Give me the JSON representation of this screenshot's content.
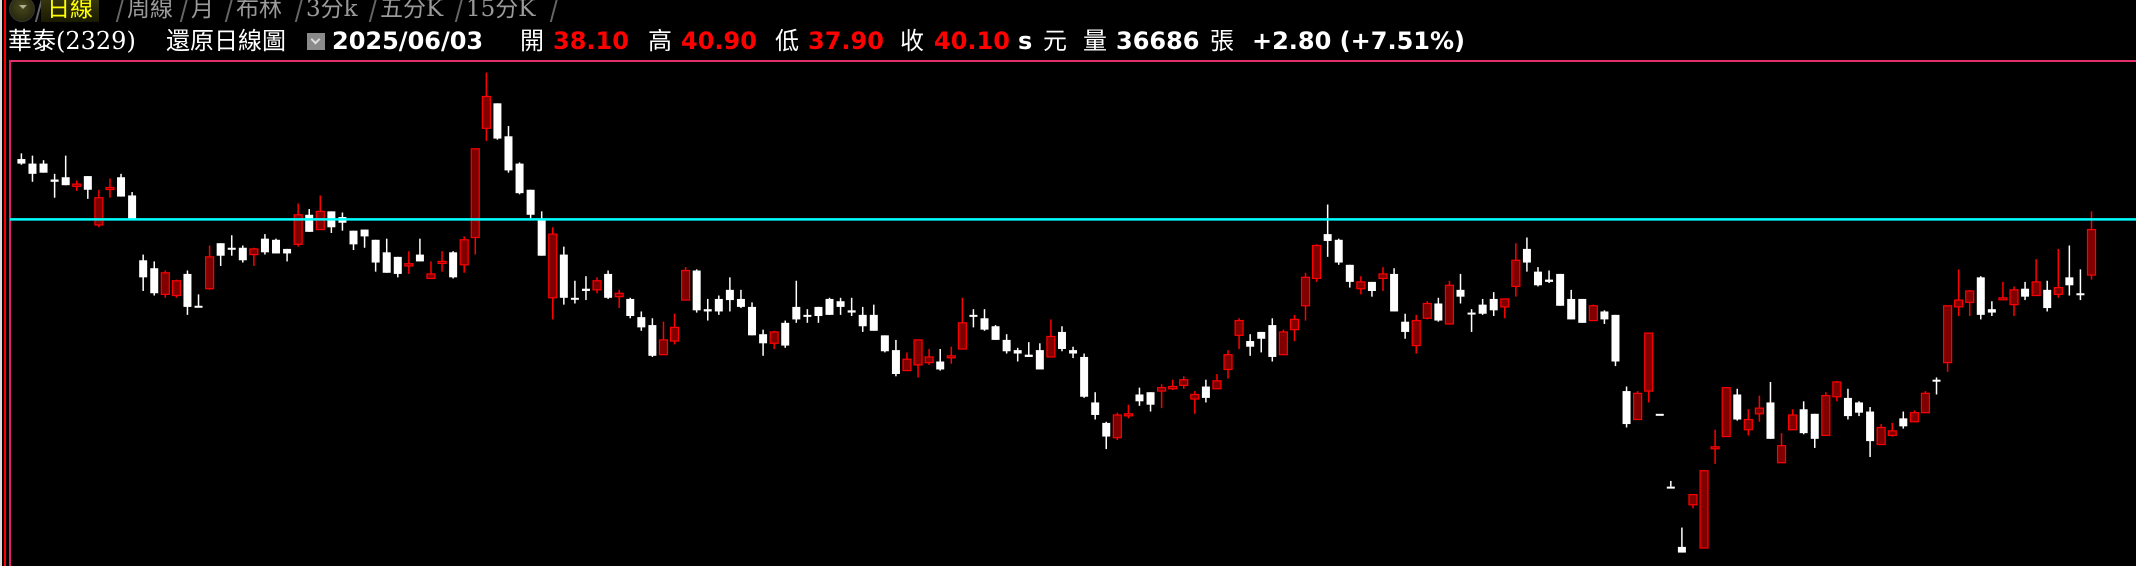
{
  "tabs": [
    {
      "label": "日線",
      "active": true
    },
    {
      "label": "周線",
      "active": false
    },
    {
      "label": "月",
      "active": false
    },
    {
      "label": "布林",
      "active": false
    },
    {
      "label": "3分k",
      "active": false
    },
    {
      "label": "五分K",
      "active": false
    },
    {
      "label": "15分K",
      "active": false
    }
  ],
  "info": {
    "stock": "華泰(2329)",
    "chart_type": "還原日線圖",
    "date": "2025/06/03",
    "open_label": "開",
    "open": "38.10",
    "high_label": "高",
    "high": "40.90",
    "low_label": "低",
    "low": "37.90",
    "close_label": "收",
    "close": "40.10",
    "close_suffix": "s",
    "unit": "元",
    "volume_label": "量",
    "volume": "36686",
    "volume_unit": "張",
    "change": "+2.80 (+7.51%)"
  },
  "colors": {
    "up": "#ff0000",
    "up_fill": "#800000",
    "down": "#ffffff",
    "reference_line": "#00ffff",
    "frame": "#e0206a",
    "active_tab": "#ffff00"
  },
  "chart_data": {
    "type": "candlestick",
    "ylim": [
      25.31,
      47.51
    ],
    "reference_line": 40.55,
    "grid": false,
    "ohlc_fields": [
      "open",
      "high",
      "low",
      "close"
    ],
    "candles": [
      [
        43.2,
        43.45,
        42.95,
        43.0
      ],
      [
        43.0,
        43.35,
        42.2,
        42.55
      ],
      [
        43.0,
        43.15,
        42.6,
        42.6
      ],
      [
        42.3,
        42.55,
        41.5,
        42.2
      ],
      [
        42.4,
        43.35,
        42.05,
        42.05
      ],
      [
        42.0,
        42.25,
        41.8,
        42.1
      ],
      [
        42.45,
        42.45,
        41.45,
        41.85
      ],
      [
        40.3,
        41.85,
        40.2,
        41.5
      ],
      [
        41.9,
        42.35,
        41.5,
        41.95
      ],
      [
        42.4,
        42.55,
        41.55,
        41.55
      ],
      [
        41.6,
        41.75,
        40.55,
        40.55
      ],
      [
        38.75,
        39.0,
        37.4,
        38.0
      ],
      [
        38.4,
        38.7,
        37.2,
        37.3
      ],
      [
        37.25,
        38.3,
        37.1,
        38.2
      ],
      [
        37.2,
        37.9,
        37.1,
        37.85
      ],
      [
        38.15,
        38.3,
        36.35,
        36.7
      ],
      [
        36.75,
        37.25,
        36.7,
        36.7
      ],
      [
        37.5,
        39.4,
        37.45,
        38.9
      ],
      [
        39.5,
        39.5,
        38.5,
        38.95
      ],
      [
        39.3,
        39.85,
        38.95,
        39.25
      ],
      [
        39.3,
        39.4,
        38.65,
        38.75
      ],
      [
        39.0,
        39.3,
        38.5,
        39.25
      ],
      [
        39.7,
        39.9,
        39.0,
        39.1
      ],
      [
        39.65,
        39.7,
        39.05,
        39.05
      ],
      [
        39.25,
        39.25,
        38.7,
        39.05
      ],
      [
        39.45,
        41.25,
        39.35,
        40.75
      ],
      [
        40.75,
        41.0,
        40.0,
        40.0
      ],
      [
        40.1,
        41.6,
        40.1,
        40.9
      ],
      [
        40.9,
        40.9,
        39.95,
        40.2
      ],
      [
        40.65,
        40.85,
        40.05,
        40.4
      ],
      [
        40.05,
        40.05,
        39.2,
        39.45
      ],
      [
        40.1,
        40.1,
        39.3,
        39.8
      ],
      [
        39.65,
        39.65,
        38.25,
        38.65
      ],
      [
        39.1,
        39.7,
        38.2,
        38.2
      ],
      [
        38.9,
        38.9,
        38.0,
        38.15
      ],
      [
        38.5,
        39.15,
        38.15,
        38.6
      ],
      [
        39.0,
        39.7,
        38.7,
        38.7
      ],
      [
        37.95,
        38.7,
        37.95,
        38.15
      ],
      [
        38.65,
        39.15,
        38.25,
        38.7
      ],
      [
        39.1,
        39.15,
        37.95,
        38.0
      ],
      [
        38.55,
        39.8,
        38.2,
        39.65
      ],
      [
        39.75,
        43.65,
        39.0,
        43.65
      ],
      [
        44.55,
        47.0,
        44.0,
        45.95
      ],
      [
        45.65,
        45.65,
        44.05,
        44.1
      ],
      [
        44.2,
        44.65,
        42.6,
        42.7
      ],
      [
        43.0,
        43.05,
        41.65,
        41.7
      ],
      [
        41.85,
        41.85,
        40.6,
        40.75
      ],
      [
        40.55,
        40.9,
        38.95,
        38.95
      ],
      [
        37.1,
        40.2,
        36.15,
        39.9
      ],
      [
        39.0,
        39.35,
        36.8,
        37.1
      ],
      [
        37.1,
        37.85,
        36.85,
        37.05
      ],
      [
        37.5,
        38.05,
        37.0,
        37.4
      ],
      [
        37.45,
        38.0,
        37.3,
        37.85
      ],
      [
        38.15,
        38.3,
        37.05,
        37.1
      ],
      [
        37.15,
        37.45,
        36.65,
        37.3
      ],
      [
        37.05,
        37.1,
        36.2,
        36.3
      ],
      [
        36.25,
        36.5,
        35.65,
        35.8
      ],
      [
        35.9,
        36.2,
        34.5,
        34.55
      ],
      [
        34.6,
        36.05,
        34.6,
        35.25
      ],
      [
        35.2,
        36.4,
        35.05,
        35.8
      ],
      [
        37.0,
        38.45,
        37.0,
        38.3
      ],
      [
        38.3,
        38.35,
        36.45,
        36.55
      ],
      [
        36.6,
        37.05,
        36.1,
        36.5
      ],
      [
        37.05,
        37.2,
        36.35,
        36.5
      ],
      [
        37.45,
        38.0,
        36.5,
        37.0
      ],
      [
        37.05,
        37.45,
        36.65,
        36.7
      ],
      [
        36.7,
        36.9,
        35.45,
        35.45
      ],
      [
        35.5,
        35.7,
        34.55,
        35.1
      ],
      [
        35.1,
        35.65,
        34.85,
        35.6
      ],
      [
        36.0,
        36.1,
        34.9,
        35.0
      ],
      [
        36.7,
        37.85,
        36.0,
        36.15
      ],
      [
        36.35,
        36.6,
        36.0,
        36.3
      ],
      [
        36.7,
        36.7,
        36.0,
        36.3
      ],
      [
        37.05,
        37.1,
        36.35,
        36.35
      ],
      [
        36.95,
        37.1,
        36.35,
        36.7
      ],
      [
        36.55,
        37.1,
        36.3,
        36.45
      ],
      [
        36.35,
        36.7,
        35.6,
        35.85
      ],
      [
        36.35,
        36.8,
        35.65,
        35.65
      ],
      [
        35.45,
        35.45,
        34.7,
        34.75
      ],
      [
        34.8,
        35.25,
        33.65,
        33.75
      ],
      [
        33.9,
        34.7,
        33.9,
        34.4
      ],
      [
        34.15,
        35.25,
        33.6,
        35.25
      ],
      [
        34.25,
        34.85,
        34.15,
        34.5
      ],
      [
        34.3,
        34.85,
        33.9,
        33.95
      ],
      [
        34.5,
        34.95,
        34.2,
        34.55
      ],
      [
        34.85,
        37.1,
        34.85,
        36.0
      ],
      [
        36.35,
        36.6,
        35.8,
        36.3
      ],
      [
        36.2,
        36.6,
        35.65,
        35.7
      ],
      [
        35.85,
        35.9,
        35.25,
        35.25
      ],
      [
        35.25,
        35.5,
        34.65,
        34.75
      ],
      [
        34.8,
        34.9,
        34.3,
        34.65
      ],
      [
        34.6,
        35.15,
        34.5,
        34.5
      ],
      [
        34.8,
        35.1,
        33.95,
        33.95
      ],
      [
        34.5,
        36.15,
        34.5,
        35.4
      ],
      [
        35.6,
        35.85,
        34.75,
        34.85
      ],
      [
        34.8,
        34.95,
        34.45,
        34.65
      ],
      [
        34.5,
        34.65,
        32.7,
        32.75
      ],
      [
        32.5,
        32.95,
        31.75,
        31.95
      ],
      [
        31.6,
        31.65,
        30.45,
        31.0
      ],
      [
        30.95,
        32.05,
        30.85,
        31.95
      ],
      [
        31.95,
        32.4,
        31.8,
        32.0
      ],
      [
        32.85,
        33.15,
        32.35,
        32.55
      ],
      [
        32.95,
        32.95,
        32.1,
        32.4
      ],
      [
        33.0,
        33.3,
        32.25,
        33.15
      ],
      [
        33.1,
        33.5,
        33.05,
        33.2
      ],
      [
        33.25,
        33.65,
        33.1,
        33.5
      ],
      [
        32.65,
        33.0,
        32.0,
        32.85
      ],
      [
        33.2,
        33.5,
        32.5,
        32.7
      ],
      [
        33.1,
        33.75,
        33.1,
        33.45
      ],
      [
        33.95,
        34.8,
        33.55,
        34.6
      ],
      [
        35.45,
        36.2,
        34.85,
        36.1
      ],
      [
        35.2,
        35.5,
        34.55,
        34.95
      ],
      [
        35.6,
        35.6,
        34.7,
        35.3
      ],
      [
        35.9,
        36.2,
        34.3,
        34.5
      ],
      [
        34.6,
        35.7,
        34.6,
        35.6
      ],
      [
        35.7,
        36.35,
        35.2,
        36.15
      ],
      [
        36.75,
        38.2,
        36.1,
        38.0
      ],
      [
        37.95,
        39.45,
        37.8,
        39.4
      ],
      [
        39.9,
        41.2,
        38.9,
        39.6
      ],
      [
        39.65,
        39.7,
        38.55,
        38.65
      ],
      [
        38.55,
        38.55,
        37.55,
        37.8
      ],
      [
        37.5,
        38.05,
        37.25,
        37.8
      ],
      [
        37.8,
        37.8,
        37.15,
        37.4
      ],
      [
        37.95,
        38.45,
        37.4,
        38.15
      ],
      [
        38.15,
        38.4,
        36.5,
        36.5
      ],
      [
        36.05,
        36.4,
        35.3,
        35.6
      ],
      [
        35.0,
        36.35,
        34.65,
        36.1
      ],
      [
        36.2,
        36.95,
        36.15,
        36.85
      ],
      [
        36.85,
        37.1,
        36.05,
        36.1
      ],
      [
        35.95,
        37.85,
        35.95,
        37.65
      ],
      [
        37.45,
        38.15,
        36.85,
        37.15
      ],
      [
        36.45,
        36.6,
        35.6,
        36.4
      ],
      [
        36.8,
        37.05,
        36.35,
        36.4
      ],
      [
        37.05,
        37.35,
        36.3,
        36.55
      ],
      [
        36.7,
        37.05,
        36.2,
        37.05
      ],
      [
        37.6,
        39.5,
        37.15,
        38.75
      ],
      [
        39.25,
        39.75,
        38.25,
        38.65
      ],
      [
        38.25,
        38.45,
        37.6,
        37.65
      ],
      [
        37.9,
        38.3,
        37.75,
        37.8
      ],
      [
        38.15,
        38.15,
        36.75,
        36.75
      ],
      [
        37.05,
        37.45,
        36.15,
        36.15
      ],
      [
        37.05,
        37.05,
        36.0,
        36.0
      ],
      [
        36.1,
        36.8,
        36.1,
        36.75
      ],
      [
        36.5,
        36.55,
        35.95,
        36.15
      ],
      [
        36.35,
        36.35,
        34.1,
        34.3
      ],
      [
        33.0,
        33.2,
        31.4,
        31.55
      ],
      [
        31.75,
        33.0,
        31.75,
        32.9
      ],
      [
        33.0,
        35.55,
        32.5,
        35.55
      ],
      [
        32.0,
        32.0,
        32.0,
        32.0
      ],
      [
        28.8,
        29.05,
        28.8,
        28.8
      ],
      [
        26.15,
        27.0,
        25.9,
        25.9
      ],
      [
        28.0,
        28.45,
        27.85,
        28.45
      ],
      [
        26.1,
        29.5,
        26.1,
        29.5
      ],
      [
        30.5,
        31.3,
        29.8,
        30.55
      ],
      [
        31.0,
        33.15,
        31.0,
        33.15
      ],
      [
        32.85,
        33.1,
        31.7,
        31.75
      ],
      [
        31.3,
        32.2,
        31.05,
        31.75
      ],
      [
        32.0,
        32.8,
        31.65,
        32.25
      ],
      [
        32.5,
        33.4,
        30.9,
        30.9
      ],
      [
        29.85,
        31.15,
        29.85,
        30.6
      ],
      [
        31.3,
        32.2,
        31.3,
        31.95
      ],
      [
        32.2,
        32.55,
        31.1,
        31.15
      ],
      [
        32.0,
        32.0,
        30.5,
        30.9
      ],
      [
        31.05,
        32.95,
        31.05,
        32.8
      ],
      [
        32.75,
        33.45,
        32.55,
        33.4
      ],
      [
        32.7,
        33.1,
        31.75,
        31.9
      ],
      [
        32.5,
        32.55,
        31.9,
        32.05
      ],
      [
        32.1,
        32.3,
        30.1,
        30.8
      ],
      [
        30.65,
        31.55,
        30.65,
        31.4
      ],
      [
        31.05,
        31.6,
        31.0,
        31.25
      ],
      [
        31.8,
        32.1,
        31.35,
        31.45
      ],
      [
        31.65,
        32.15,
        31.65,
        32.05
      ],
      [
        32.05,
        33.0,
        32.05,
        32.9
      ],
      [
        33.5,
        33.6,
        32.85,
        33.45
      ],
      [
        34.25,
        36.75,
        33.85,
        36.75
      ],
      [
        36.7,
        38.35,
        36.3,
        37.0
      ],
      [
        36.9,
        37.45,
        36.3,
        37.4
      ],
      [
        38.0,
        38.05,
        36.15,
        36.35
      ],
      [
        36.6,
        36.95,
        36.3,
        36.45
      ],
      [
        37.05,
        37.8,
        37.05,
        37.1
      ],
      [
        36.8,
        37.6,
        36.3,
        37.45
      ],
      [
        37.5,
        37.8,
        37.0,
        37.15
      ],
      [
        37.2,
        38.8,
        37.2,
        37.8
      ],
      [
        37.45,
        37.85,
        36.5,
        36.65
      ],
      [
        37.25,
        39.25,
        37.1,
        37.55
      ],
      [
        38.0,
        39.4,
        37.2,
        37.65
      ],
      [
        37.3,
        38.35,
        37.0,
        37.25
      ],
      [
        38.1,
        40.9,
        37.9,
        40.1
      ]
    ]
  }
}
